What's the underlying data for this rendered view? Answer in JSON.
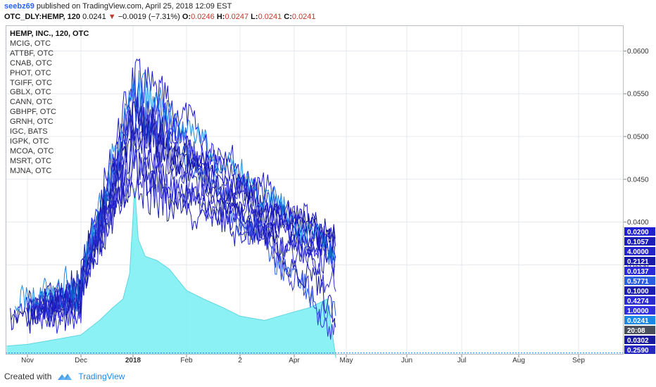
{
  "header": {
    "user": "seebz69",
    "published_text": "published on TradingView.com, April 25, 2018 12:09 EST",
    "symbol": "OTC_DLY:HEMP, 120",
    "last": "0.0241",
    "change_arrow": "▼",
    "change": "−0.0019 (−7.31%)",
    "o_label": "O:",
    "o": "0.0246",
    "h_label": "H:",
    "h": "0.0247",
    "l_label": "L:",
    "l": "0.0241",
    "c_label": "C:",
    "c": "0.0241"
  },
  "footer": {
    "created_with": "Created with",
    "brand": "TradingView"
  },
  "chart_data": {
    "type": "line",
    "title": "HEMP, INC., 120, OTC",
    "legend_entries": [
      "MCIG, OTC",
      "ATTBF, OTC",
      "CNAB, OTC",
      "PHOT, OTC",
      "TGIFF, OTC",
      "GBLX, OTC",
      "CANN, OTC",
      "GBHPF, OTC",
      "GRNH, OTC",
      "IGC, BATS",
      "IGPK, OTC",
      "MCOA, OTC",
      "MSRT, OTC",
      "MJNA, OTC"
    ],
    "x_ticks": [
      "Nov",
      "Dec",
      "2018",
      "Feb",
      "2",
      "Apr",
      "May",
      "Jun",
      "Jul",
      "Aug",
      "Sep"
    ],
    "y_ticks": [
      "0.0600",
      "0.0550",
      "0.0500",
      "0.0450",
      "0.0400",
      "0.0350"
    ],
    "ylim": [
      0.0245,
      0.063
    ],
    "last_value_labels": [
      {
        "text": "0.0200",
        "color": "#2020d0"
      },
      {
        "text": "0.1057",
        "color": "#1d1db8"
      },
      {
        "text": "4.0000",
        "color": "#2424c8"
      },
      {
        "text": "0.2121",
        "color": "#1a1aa8"
      },
      {
        "text": "0.0137",
        "color": "#2a2ad8"
      },
      {
        "text": "0.5771",
        "color": "#2a5ee0"
      },
      {
        "text": "0.1000",
        "color": "#1c1cb0"
      },
      {
        "text": "0.4274",
        "color": "#2a2ad0"
      },
      {
        "text": "1.0000",
        "color": "#3030e0"
      },
      {
        "text": "0.0241",
        "color": "#1e88e5"
      },
      {
        "text": "20:08",
        "color": "#4a4f5c"
      },
      {
        "text": "0.0302",
        "color": "#1a1aa0"
      },
      {
        "text": "0.2590",
        "color": "#2626c0"
      }
    ],
    "hemp_area_points": [
      {
        "x": "Oct 20",
        "y": 0.0255
      },
      {
        "x": "Nov 1",
        "y": 0.0257
      },
      {
        "x": "Nov 15",
        "y": 0.0262
      },
      {
        "x": "Dec 1",
        "y": 0.0268
      },
      {
        "x": "Dec 12",
        "y": 0.0285
      },
      {
        "x": "Dec 20",
        "y": 0.03
      },
      {
        "x": "Dec 26",
        "y": 0.031
      },
      {
        "x": "Dec 30",
        "y": 0.034
      },
      {
        "x": "Jan 2",
        "y": 0.044
      },
      {
        "x": "Jan 4",
        "y": 0.038
      },
      {
        "x": "Jan 8",
        "y": 0.036
      },
      {
        "x": "Jan 15",
        "y": 0.0355
      },
      {
        "x": "Jan 22",
        "y": 0.0345
      },
      {
        "x": "Feb 1",
        "y": 0.032
      },
      {
        "x": "Feb 10",
        "y": 0.031
      },
      {
        "x": "Feb 20",
        "y": 0.03
      },
      {
        "x": "Mar 1",
        "y": 0.029
      },
      {
        "x": "Mar 15",
        "y": 0.0285
      },
      {
        "x": "Apr 1",
        "y": 0.0295
      },
      {
        "x": "Apr 10",
        "y": 0.03
      },
      {
        "x": "Apr 20",
        "y": 0.031
      },
      {
        "x": "Apr 25",
        "y": 0.0241
      }
    ],
    "price_line": 0.0247,
    "grid": true
  }
}
